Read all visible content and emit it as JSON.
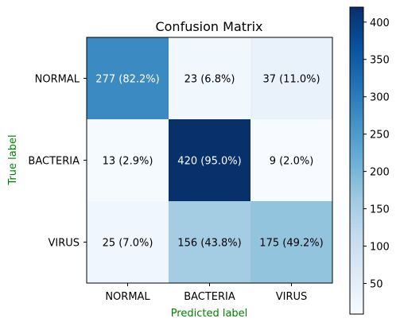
{
  "chart_data": {
    "type": "heatmap",
    "title": "Confusion Matrix",
    "xlabel": "Predicted label",
    "ylabel": "True label",
    "label_color": "#008000",
    "x_categories": [
      "NORMAL",
      "BACTERIA",
      "VIRUS"
    ],
    "y_categories": [
      "NORMAL",
      "BACTERIA",
      "VIRUS"
    ],
    "values": [
      [
        277,
        23,
        37
      ],
      [
        13,
        420,
        9
      ],
      [
        25,
        156,
        175
      ]
    ],
    "cell_labels": [
      [
        "277 (82.2%)",
        "23 (6.8%)",
        "37 (11.0%)"
      ],
      [
        "13 (2.9%)",
        "420 (95.0%)",
        "9 (2.0%)"
      ],
      [
        "25 (7.0%)",
        "156 (43.8%)",
        "175 (49.2%)"
      ]
    ],
    "colormap": "Blues",
    "colorbar": {
      "min": 9,
      "max": 420,
      "ticks": [
        50,
        100,
        150,
        200,
        250,
        300,
        350,
        400
      ]
    }
  }
}
